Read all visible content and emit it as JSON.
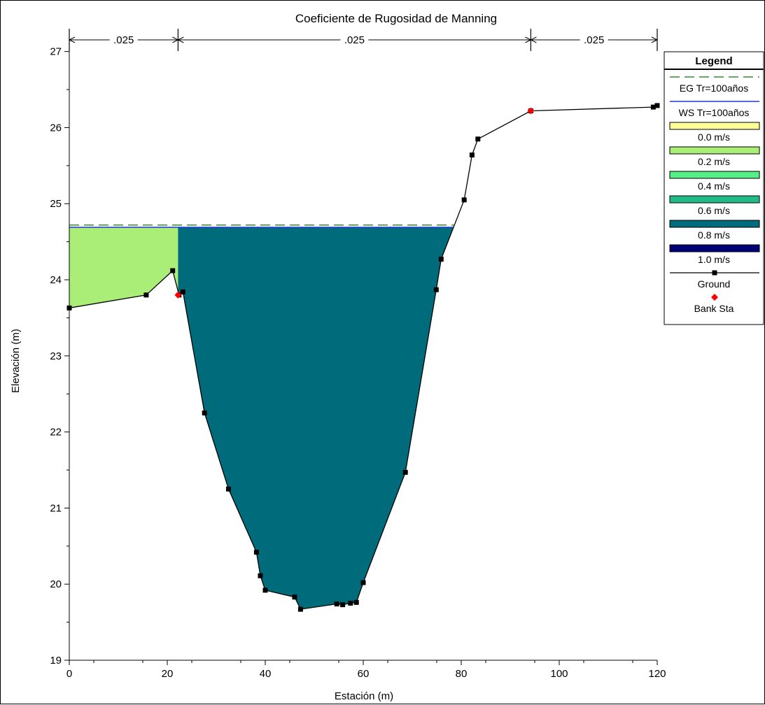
{
  "chart_data": {
    "type": "area",
    "title": "Coeficiente de Rugosidad de Manning",
    "xlabel": "Estación (m)",
    "ylabel": "Elevación (m)",
    "xlim": [
      0,
      120
    ],
    "ylim": [
      19,
      27.3
    ],
    "x_ticks": [
      0,
      20,
      40,
      60,
      80,
      100,
      120
    ],
    "y_ticks": [
      19,
      20,
      21,
      22,
      23,
      24,
      25,
      26,
      27
    ],
    "grid": false,
    "legend_placement": "right",
    "manning_n": [
      {
        "label": ".025",
        "from": 0,
        "to": 22.2
      },
      {
        "label": ".025",
        "from": 22.2,
        "to": 94.2
      },
      {
        "label": ".025",
        "from": 94.2,
        "to": 120
      }
    ],
    "legend": {
      "title": "Legend",
      "entries": [
        {
          "label": "EG Tr=100años",
          "kind": "dashed-line",
          "color": "#2f8f2f"
        },
        {
          "label": "WS Tr=100años",
          "kind": "line",
          "color": "#2233dd"
        },
        {
          "label": "0.0 m/s",
          "kind": "swatch",
          "color": "#ffff99"
        },
        {
          "label": "0.2 m/s",
          "kind": "swatch",
          "color": "#aaee77"
        },
        {
          "label": "0.4 m/s",
          "kind": "swatch",
          "color": "#55ee88"
        },
        {
          "label": "0.6 m/s",
          "kind": "swatch",
          "color": "#22bb88"
        },
        {
          "label": "0.8 m/s",
          "kind": "swatch",
          "color": "#006b7a"
        },
        {
          "label": "1.0 m/s",
          "kind": "swatch",
          "color": "#000077"
        },
        {
          "label": "Ground",
          "kind": "line-marker",
          "color": "#000000"
        },
        {
          "label": "Bank Sta",
          "kind": "marker",
          "color": "#ff0000"
        }
      ]
    },
    "series": [
      {
        "name": "EG Tr=100años",
        "type": "line",
        "color": "#2f8f2f",
        "x": [
          0,
          78.5
        ],
        "y": [
          24.72,
          24.72
        ]
      },
      {
        "name": "WS Tr=100años",
        "type": "line",
        "color": "#2233dd",
        "x": [
          0,
          78.5
        ],
        "y": [
          24.69,
          24.69
        ]
      },
      {
        "name": "Ground",
        "type": "line",
        "color": "#000000",
        "x": [
          0,
          15.7,
          21.1,
          22.4,
          23.2,
          27.6,
          32.5,
          38.2,
          39.0,
          40.0,
          46.0,
          47.2,
          54.6,
          55.8,
          57.4,
          58.6,
          60.0,
          68.6,
          74.9,
          75.9,
          80.6,
          82.2,
          83.4,
          94.2,
          119.2,
          120.0
        ],
        "y": [
          23.63,
          23.8,
          24.12,
          23.8,
          23.84,
          22.25,
          21.25,
          20.42,
          20.11,
          19.92,
          19.83,
          19.67,
          19.74,
          19.73,
          19.75,
          19.76,
          20.02,
          21.47,
          23.87,
          24.27,
          25.05,
          25.64,
          25.85,
          26.22,
          26.27,
          26.29
        ]
      },
      {
        "name": "Bank Sta",
        "type": "scatter",
        "color": "#ff0000",
        "x": [
          22.2,
          94.2
        ],
        "y": [
          23.8,
          26.22
        ]
      }
    ],
    "flow_areas": [
      {
        "velocity": "0.2 m/s",
        "color": "#aaee77",
        "from_x": 0,
        "to_x": 22.2
      },
      {
        "velocity": "0.8 m/s",
        "color": "#006b7a",
        "from_x": 22.2,
        "to_x": 78.5
      }
    ]
  }
}
